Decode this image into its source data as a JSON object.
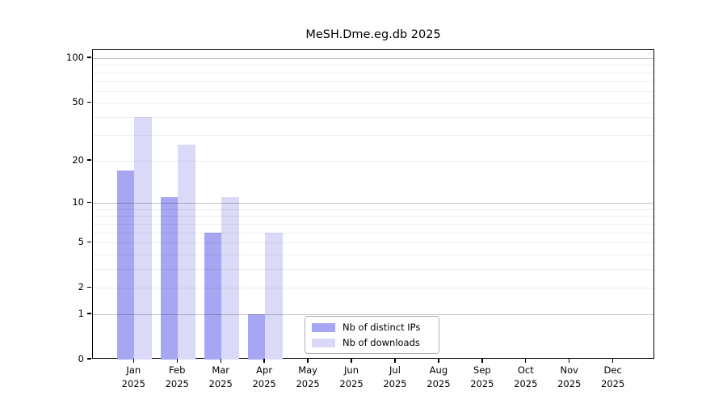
{
  "chart_data": {
    "type": "bar",
    "title": "MeSH.Dme.eg.db 2025",
    "xlabel": "",
    "ylabel": "",
    "year": "2025",
    "categories": [
      "Jan",
      "Feb",
      "Mar",
      "Apr",
      "May",
      "Jun",
      "Jul",
      "Aug",
      "Sep",
      "Oct",
      "Nov",
      "Dec"
    ],
    "series": [
      {
        "name": "Nb of distinct IPs",
        "color": "#a6a6f2",
        "values": [
          17,
          11,
          6,
          1,
          0,
          0,
          0,
          0,
          0,
          0,
          0,
          0
        ]
      },
      {
        "name": "Nb of downloads",
        "color": "#dadaf8",
        "values": [
          40,
          26,
          11,
          6,
          0,
          0,
          0,
          0,
          0,
          0,
          0,
          0
        ]
      }
    ],
    "yscale": "log1p",
    "yticks": [
      0,
      1,
      2,
      5,
      10,
      20,
      50,
      100
    ],
    "ylim": [
      0,
      113
    ],
    "grid": "horizontal",
    "gridline_major_values": [
      1,
      10,
      100
    ],
    "gridline_minor_values": [
      2,
      3,
      4,
      5,
      6,
      7,
      8,
      9,
      20,
      30,
      40,
      50,
      60,
      70,
      80,
      90
    ],
    "legend_position": "inside lower-center",
    "frame_color": "#000000",
    "background_color": "#ffffff"
  }
}
